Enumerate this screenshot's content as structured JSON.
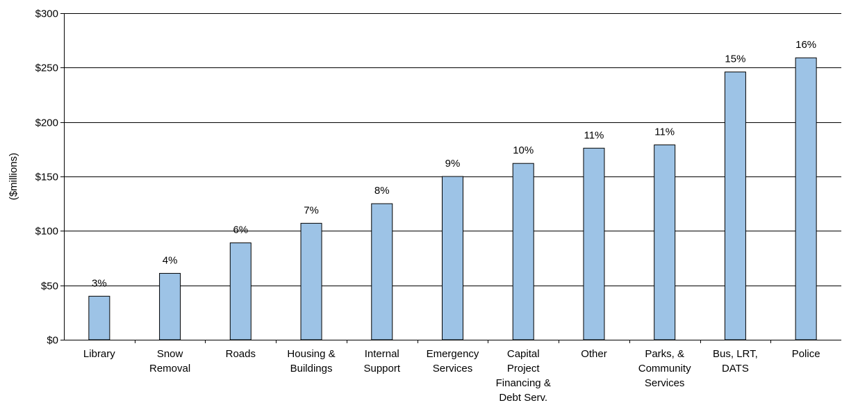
{
  "chart_data": {
    "type": "bar",
    "title": "",
    "xlabel": "",
    "ylabel": "($millions)",
    "ylim": [
      0,
      300
    ],
    "y_ticks": [
      0,
      50,
      100,
      150,
      200,
      250,
      300
    ],
    "y_tick_labels": [
      "$0",
      "$50",
      "$100",
      "$150",
      "$200",
      "$250",
      "$300"
    ],
    "grid": "horizontal major gridlines",
    "legend": "none",
    "categories": [
      [
        "Library"
      ],
      [
        "Snow",
        "Removal"
      ],
      [
        "Roads"
      ],
      [
        "Housing &",
        "Buildings"
      ],
      [
        "Internal",
        "Support"
      ],
      [
        "Emergency",
        "Services"
      ],
      [
        "Capital",
        "Project",
        "Financing &",
        "Debt Serv."
      ],
      [
        "Other"
      ],
      [
        "Parks, &",
        "Community",
        "Services"
      ],
      [
        "Bus, LRT,",
        "DATS"
      ],
      [
        "Police"
      ]
    ],
    "values": [
      40,
      61,
      89,
      107,
      125,
      150,
      162,
      176,
      179,
      246,
      259
    ],
    "data_labels": [
      "3%",
      "4%",
      "6%",
      "7%",
      "8%",
      "9%",
      "10%",
      "11%",
      "11%",
      "15%",
      "16%"
    ],
    "colors": {
      "bar_fill": "#9dc3e6",
      "bar_stroke": "#000000",
      "grid": "#000000",
      "axis": "#000000"
    }
  }
}
